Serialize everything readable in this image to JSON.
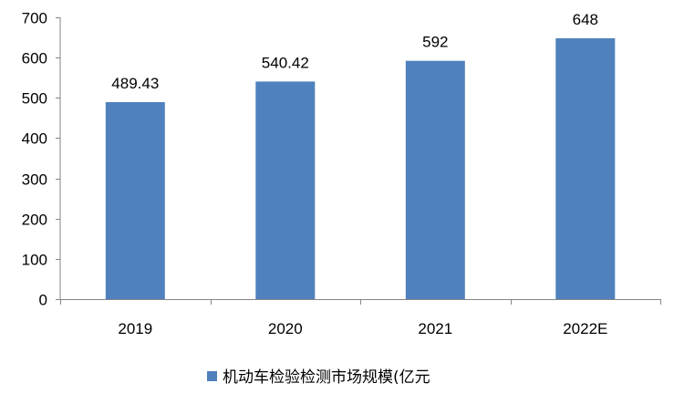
{
  "chart_data": {
    "type": "bar",
    "title": "",
    "xlabel": "",
    "ylabel": "",
    "categories": [
      "2019",
      "2020",
      "2021",
      "2022E"
    ],
    "series": [
      {
        "name": "机动车检验检测市场规模(亿元",
        "values": [
          489.43,
          540.42,
          592,
          648
        ],
        "labels": [
          "489.43",
          "540.42",
          "592",
          "648"
        ],
        "color": "#4F81BD"
      }
    ],
    "ylim": [
      0,
      700
    ],
    "yticks": [
      0,
      100,
      200,
      300,
      400,
      500,
      600,
      700
    ],
    "grid": false,
    "legend_position": "bottom"
  }
}
